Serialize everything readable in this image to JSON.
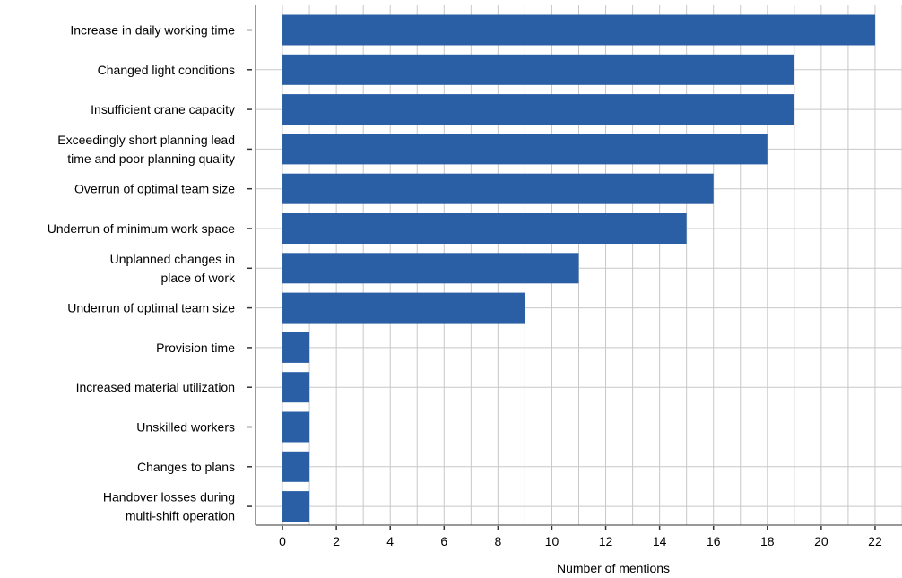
{
  "chart_data": {
    "type": "bar",
    "orientation": "horizontal",
    "categories": [
      [
        "Increase in daily working time"
      ],
      [
        "Changed light conditions"
      ],
      [
        "Insufficient crane capacity"
      ],
      [
        "Exceedingly short planning lead",
        "time and poor planning quality"
      ],
      [
        "Overrun of optimal team size"
      ],
      [
        "Underrun of minimum work space"
      ],
      [
        "Unplanned changes in",
        "place of work"
      ],
      [
        "Underrun of optimal team size"
      ],
      [
        "Provision time"
      ],
      [
        "Increased material utilization"
      ],
      [
        "Unskilled workers"
      ],
      [
        "Changes to plans"
      ],
      [
        "Handover losses during",
        "multi-shift operation"
      ]
    ],
    "values": [
      22,
      19,
      19,
      18,
      16,
      15,
      11,
      9,
      1,
      1,
      1,
      1,
      1
    ],
    "xlabel": "Number of mentions",
    "xlim": [
      -1,
      23
    ],
    "xticks": [
      0,
      2,
      4,
      6,
      8,
      10,
      12,
      14,
      16,
      18,
      20,
      22
    ],
    "minor_grid_step": 1,
    "grid": true,
    "bar_color": "#2a5fa5",
    "grid_color": "#c8c8c8"
  }
}
